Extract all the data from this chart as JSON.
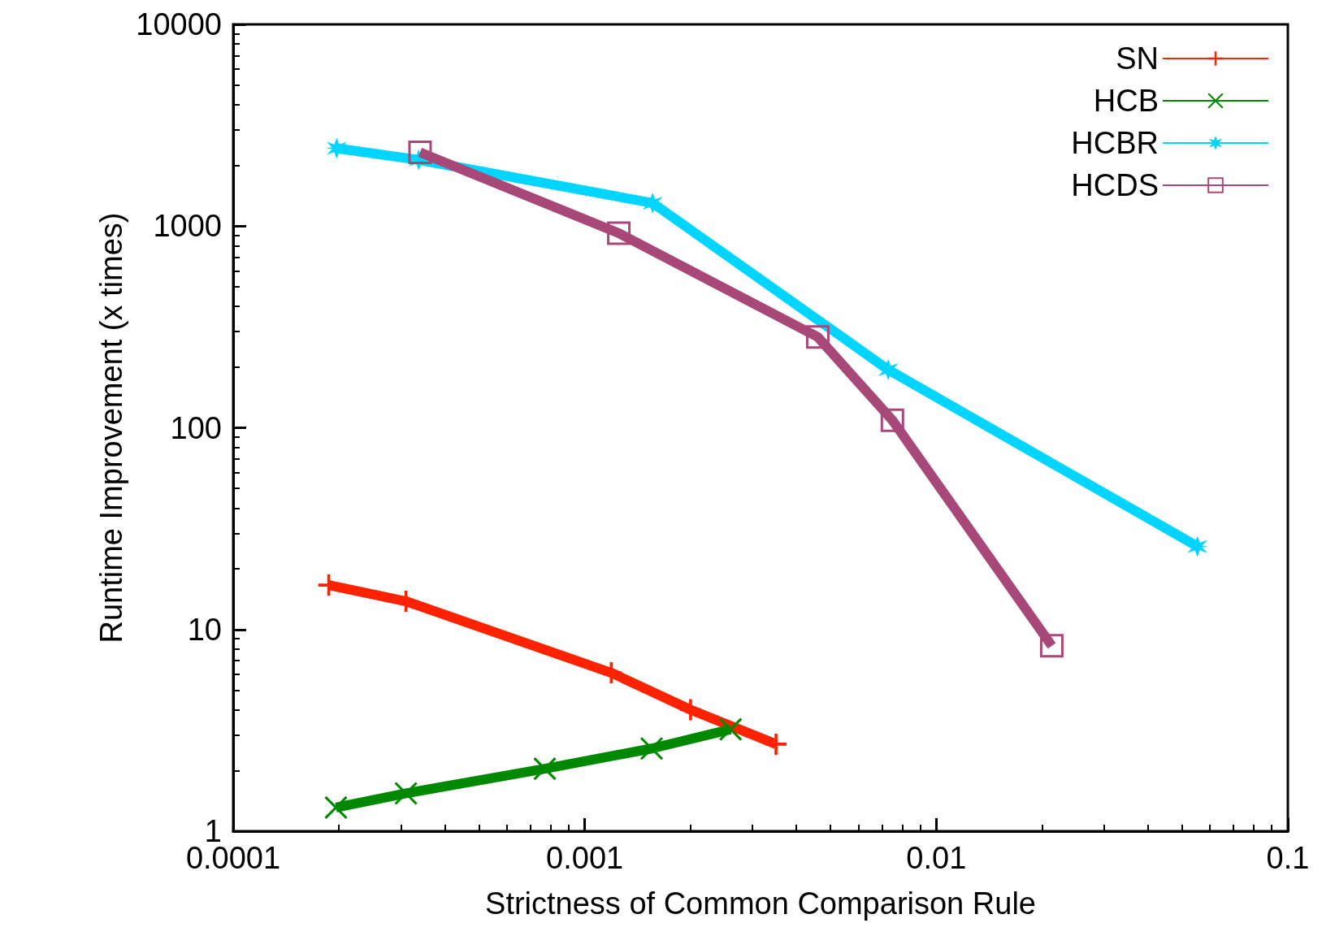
{
  "chart_data": {
    "type": "line",
    "xlabel": "Strictness of Common Comparison Rule",
    "ylabel": "Runtime Improvement (x times)",
    "log": "xy",
    "xlim": [
      0.0001,
      0.1
    ],
    "xticks": [
      0.0001,
      0.001,
      0.01,
      0.1
    ],
    "ylim": [
      1,
      10000
    ],
    "yticks": [
      1,
      10,
      100,
      1000,
      10000
    ],
    "grid": false,
    "legend": "top right",
    "line_style": "solid",
    "series": [
      {
        "name": "SN",
        "color": "#ff2200",
        "marker": "cross",
        "x": [
          0.000187,
          0.00031,
          0.00119,
          0.002,
          0.0035
        ],
        "values": [
          16.6,
          13.8,
          6.1,
          4.0,
          2.7
        ]
      },
      {
        "name": "HCB",
        "color": "#008800",
        "marker": "cross",
        "x": [
          0.000196,
          0.00031,
          0.00077,
          0.00155,
          0.0026
        ],
        "values": [
          1.31,
          1.54,
          2.04,
          2.57,
          3.2
        ]
      },
      {
        "name": "HCBR",
        "color": "#00d5ff",
        "marker": "star",
        "x": [
          0.000197,
          0.000337,
          0.00156,
          0.0073,
          0.0553
        ],
        "values": [
          2430,
          2130,
          1300,
          194,
          25.8
        ]
      },
      {
        "name": "HCDS",
        "color": "#a84878",
        "marker": "square",
        "x": [
          0.00034,
          0.00125,
          0.0046,
          0.0075,
          0.0213
        ],
        "values": [
          2320,
          922,
          282,
          109,
          8.3
        ]
      }
    ]
  }
}
